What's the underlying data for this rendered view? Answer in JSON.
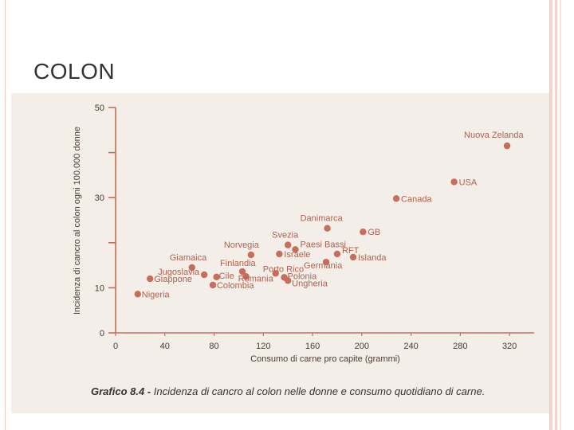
{
  "slide": {
    "title": "COLON"
  },
  "chart_data": {
    "type": "scatter",
    "title": "",
    "caption_bold": "Grafico 8.4 - ",
    "caption_text": "Incidenza di cancro al colon nelle donne e consumo quotidiano di carne.",
    "xlabel": "Consumo di carne pro capite (grammi)",
    "ylabel": "Incidenza di cancro al colon ogni 100.000 donne",
    "xlim": [
      0,
      340
    ],
    "ylim": [
      0,
      50
    ],
    "xticks": [
      0,
      40,
      80,
      120,
      160,
      200,
      240,
      280,
      320
    ],
    "yticks_labeled": [
      0,
      10,
      30,
      50
    ],
    "yticks_minor": [
      20,
      40
    ],
    "points": [
      {
        "label": "Nuova Zelanda",
        "x": 318,
        "y": 41.5
      },
      {
        "label": "USA",
        "x": 275,
        "y": 33.5
      },
      {
        "label": "Canada",
        "x": 228,
        "y": 29.8
      },
      {
        "label": "Danimarca",
        "x": 172,
        "y": 23.2
      },
      {
        "label": "GB",
        "x": 201,
        "y": 22.4
      },
      {
        "label": "Svezia",
        "x": 140,
        "y": 19.5
      },
      {
        "label": "Paesi Bassi",
        "x": 146,
        "y": 18.5
      },
      {
        "label": "Norvegia",
        "x": 110,
        "y": 17.3
      },
      {
        "label": "Israele",
        "x": 133,
        "y": 17.5
      },
      {
        "label": "RFT",
        "x": 180,
        "y": 17.5
      },
      {
        "label": "Islanda",
        "x": 193,
        "y": 16.8
      },
      {
        "label": "Germania",
        "x": 171,
        "y": 15.7
      },
      {
        "label": "Giamaica",
        "x": 62,
        "y": 14.5
      },
      {
        "label": "Finlandia",
        "x": 103,
        "y": 13.6
      },
      {
        "label": "Porto Rico",
        "x": 130,
        "y": 13.2
      },
      {
        "label": "Jugoslavia",
        "x": 72,
        "y": 12.9
      },
      {
        "label": "Cile",
        "x": 82,
        "y": 12.4
      },
      {
        "label": "Romania",
        "x": 106,
        "y": 12.5
      },
      {
        "label": "Polonia",
        "x": 137,
        "y": 12.3
      },
      {
        "label": "Giappone",
        "x": 28,
        "y": 12.0
      },
      {
        "label": "Ungheria",
        "x": 140,
        "y": 11.6
      },
      {
        "label": "Colombia",
        "x": 79,
        "y": 10.6
      },
      {
        "label": "Nigeria",
        "x": 18,
        "y": 8.6
      }
    ]
  },
  "colors": {
    "point": "#c66d5b",
    "axis": "#c66d5b",
    "text": "#4a3a35"
  }
}
